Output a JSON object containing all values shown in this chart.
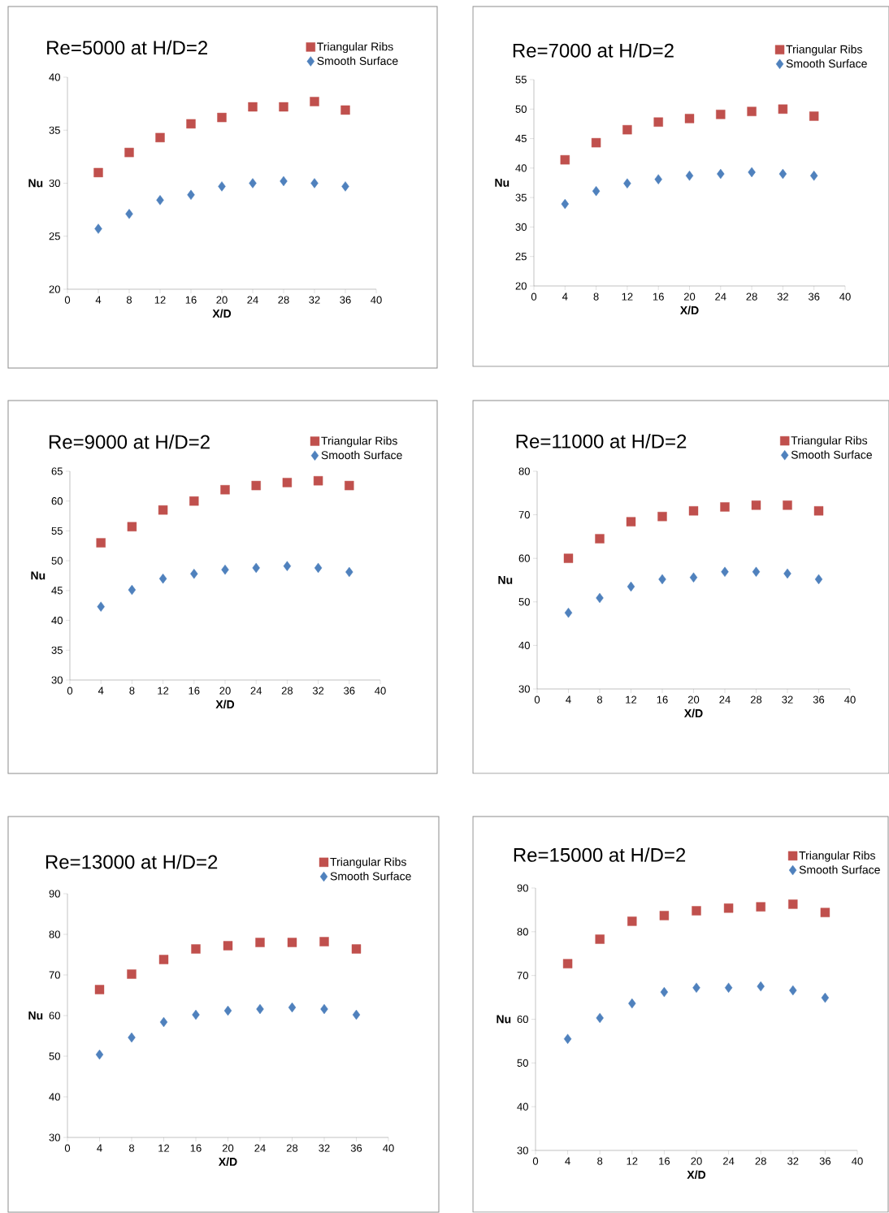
{
  "chart_data": [
    {
      "type": "scatter",
      "title": "Re=5000 at H/D=2",
      "xlabel": "X/D",
      "ylabel": "Nu",
      "xlim": [
        0,
        40
      ],
      "xticks": [
        0,
        4,
        8,
        12,
        16,
        20,
        24,
        28,
        32,
        36,
        40
      ],
      "ylim": [
        20,
        40
      ],
      "yticks": [
        20,
        25,
        30,
        35,
        40
      ],
      "legend": "top right",
      "grid": false,
      "x": [
        4,
        8,
        12,
        16,
        20,
        24,
        28,
        32,
        36
      ],
      "series": [
        {
          "name": "Triangular Ribs",
          "color": "#c0504d",
          "marker": "square",
          "values": [
            31.0,
            32.9,
            34.3,
            35.6,
            36.2,
            37.2,
            37.2,
            37.7,
            36.9
          ]
        },
        {
          "name": "Smooth Surface",
          "color": "#4f81bd",
          "marker": "diamond",
          "values": [
            25.7,
            27.1,
            28.4,
            28.9,
            29.7,
            30.0,
            30.2,
            30.0,
            29.7
          ]
        }
      ]
    },
    {
      "type": "scatter",
      "title": "Re=7000 at H/D=2",
      "xlabel": "X/D",
      "ylabel": "Nu",
      "xlim": [
        0,
        40
      ],
      "xticks": [
        0,
        4,
        8,
        12,
        16,
        20,
        24,
        28,
        32,
        36,
        40
      ],
      "ylim": [
        20,
        55
      ],
      "yticks": [
        20,
        25,
        30,
        35,
        40,
        45,
        50,
        55
      ],
      "legend": "top right",
      "grid": false,
      "x": [
        4,
        8,
        12,
        16,
        20,
        24,
        28,
        32,
        36
      ],
      "series": [
        {
          "name": "Triangular Ribs",
          "color": "#c0504d",
          "marker": "square",
          "values": [
            41.4,
            44.3,
            46.5,
            47.8,
            48.4,
            49.1,
            49.6,
            50.0,
            48.8
          ]
        },
        {
          "name": "Smooth Surface",
          "color": "#4f81bd",
          "marker": "diamond",
          "values": [
            33.9,
            36.1,
            37.4,
            38.1,
            38.7,
            39.0,
            39.3,
            39.0,
            38.7
          ]
        }
      ]
    },
    {
      "type": "scatter",
      "title": "Re=9000 at H/D=2",
      "xlabel": "X/D",
      "ylabel": "Nu",
      "xlim": [
        0,
        40
      ],
      "xticks": [
        0,
        4,
        8,
        12,
        16,
        20,
        24,
        28,
        32,
        36,
        40
      ],
      "ylim": [
        30,
        65
      ],
      "yticks": [
        30,
        35,
        40,
        45,
        50,
        55,
        60,
        65
      ],
      "legend": "top right",
      "grid": false,
      "x": [
        4,
        8,
        12,
        16,
        20,
        24,
        28,
        32,
        36
      ],
      "series": [
        {
          "name": "Triangular Ribs",
          "color": "#c0504d",
          "marker": "square",
          "values": [
            53.0,
            55.7,
            58.5,
            60.0,
            61.9,
            62.6,
            63.1,
            63.4,
            62.6
          ]
        },
        {
          "name": "Smooth Surface",
          "color": "#4f81bd",
          "marker": "diamond",
          "values": [
            42.3,
            45.1,
            47.0,
            47.8,
            48.5,
            48.8,
            49.1,
            48.8,
            48.1
          ]
        }
      ]
    },
    {
      "type": "scatter",
      "title": "Re=11000 at H/D=2",
      "xlabel": "X/D",
      "ylabel": "Nu",
      "xlim": [
        0,
        40
      ],
      "xticks": [
        0,
        4,
        8,
        12,
        16,
        20,
        24,
        28,
        32,
        36,
        40
      ],
      "ylim": [
        30,
        80
      ],
      "yticks": [
        30,
        40,
        50,
        60,
        70,
        80
      ],
      "legend": "top right",
      "grid": false,
      "x": [
        4,
        8,
        12,
        16,
        20,
        24,
        28,
        32,
        36
      ],
      "series": [
        {
          "name": "Triangular Ribs",
          "color": "#c0504d",
          "marker": "square",
          "values": [
            60.0,
            64.5,
            68.4,
            69.6,
            70.9,
            71.8,
            72.2,
            72.2,
            70.9
          ]
        },
        {
          "name": "Smooth Surface",
          "color": "#4f81bd",
          "marker": "diamond",
          "values": [
            47.5,
            50.9,
            53.5,
            55.2,
            55.6,
            56.9,
            56.9,
            56.5,
            55.2
          ]
        }
      ]
    },
    {
      "type": "scatter",
      "title": "Re=13000 at H/D=2",
      "xlabel": "X/D",
      "ylabel": "Nu",
      "xlim": [
        0,
        40
      ],
      "xticks": [
        0,
        4,
        8,
        12,
        16,
        20,
        24,
        28,
        32,
        36,
        40
      ],
      "ylim": [
        30,
        90
      ],
      "yticks": [
        30,
        40,
        50,
        60,
        70,
        80,
        90
      ],
      "legend": "top right",
      "grid": false,
      "x": [
        4,
        8,
        12,
        16,
        20,
        24,
        28,
        32,
        36
      ],
      "series": [
        {
          "name": "Triangular Ribs",
          "color": "#c0504d",
          "marker": "square",
          "values": [
            66.4,
            70.2,
            73.8,
            76.4,
            77.2,
            78.0,
            78.0,
            78.2,
            76.4
          ]
        },
        {
          "name": "Smooth Surface",
          "color": "#4f81bd",
          "marker": "diamond",
          "values": [
            50.4,
            54.6,
            58.4,
            60.2,
            61.2,
            61.6,
            62.0,
            61.6,
            60.2
          ]
        }
      ]
    },
    {
      "type": "scatter",
      "title": "Re=15000 at H/D=2",
      "xlabel": "X/D",
      "ylabel": "Nu",
      "xlim": [
        0,
        40
      ],
      "xticks": [
        0,
        4,
        8,
        12,
        16,
        20,
        24,
        28,
        32,
        36,
        40
      ],
      "ylim": [
        30,
        90
      ],
      "yticks": [
        30,
        40,
        50,
        60,
        70,
        80,
        90
      ],
      "legend": "top right",
      "grid": false,
      "x": [
        4,
        8,
        12,
        16,
        20,
        24,
        28,
        32,
        36
      ],
      "series": [
        {
          "name": "Triangular Ribs",
          "color": "#c0504d",
          "marker": "square",
          "values": [
            72.7,
            78.3,
            82.4,
            83.7,
            84.8,
            85.4,
            85.7,
            86.3,
            84.4
          ]
        },
        {
          "name": "Smooth Surface",
          "color": "#4f81bd",
          "marker": "diamond",
          "values": [
            55.5,
            60.3,
            63.6,
            66.2,
            67.2,
            67.2,
            67.5,
            66.6,
            64.9
          ]
        }
      ]
    }
  ]
}
